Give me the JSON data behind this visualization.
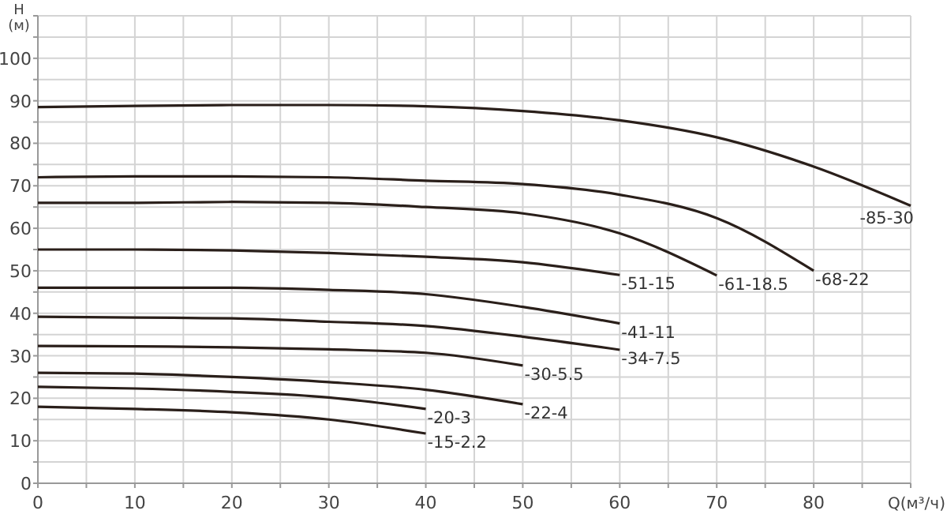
{
  "chart_data": {
    "type": "line",
    "xlabel": "Q(м³/ч)",
    "ylabel": "H (м)",
    "xlim": [
      0,
      90
    ],
    "ylim": [
      0,
      110
    ],
    "xticks": [
      0,
      {
        "value": 5,
        "label": null
      },
      10,
      {
        "value": 15,
        "label": null
      },
      20,
      {
        "value": 25,
        "label": null
      },
      30,
      {
        "value": 35,
        "label": null
      },
      40,
      {
        "value": 45,
        "label": null
      },
      50,
      {
        "value": 55,
        "label": null
      },
      60,
      {
        "value": 65,
        "label": null
      },
      70,
      {
        "value": 75,
        "label": null
      },
      80,
      {
        "value": 85,
        "label": null
      },
      {
        "value": 90,
        "label": null
      }
    ],
    "yticks": [
      0,
      {
        "value": 5,
        "label": null
      },
      10,
      {
        "value": 15,
        "label": null
      },
      20,
      {
        "value": 25,
        "label": null
      },
      30,
      {
        "value": 35,
        "label": null
      },
      40,
      {
        "value": 45,
        "label": null
      },
      50,
      {
        "value": 55,
        "label": null
      },
      60,
      {
        "value": 65,
        "label": null
      },
      70,
      {
        "value": 75,
        "label": null
      },
      80,
      {
        "value": 85,
        "label": null
      },
      90,
      {
        "value": 95,
        "label": null
      },
      100,
      {
        "value": 105,
        "label": null
      },
      {
        "value": 110,
        "label": null
      }
    ],
    "grid": true,
    "marker": "none",
    "line_style": "solid",
    "series": [
      {
        "name": "-85-30",
        "color": "#2a1f1a",
        "x": [
          0,
          10,
          20,
          30,
          40,
          50,
          60,
          70,
          80,
          90
        ],
        "values": [
          88.5,
          88.8,
          89,
          89,
          88.7,
          87.6,
          85.4,
          81.4,
          74.5,
          65.3
        ]
      },
      {
        "name": "-68-22",
        "color": "#2a1f1a",
        "x": [
          0,
          10,
          20,
          30,
          40,
          50,
          60,
          70,
          80
        ],
        "values": [
          72,
          72.2,
          72.2,
          72,
          71.2,
          70.4,
          67.9,
          62.4,
          50
        ]
      },
      {
        "name": "-61-18.5",
        "color": "#2a1f1a",
        "x": [
          0,
          10,
          20,
          30,
          40,
          50,
          60,
          70
        ],
        "values": [
          66,
          66,
          66.2,
          66,
          65,
          63.5,
          58.8,
          48.9
        ]
      },
      {
        "name": "-51-15",
        "color": "#2a1f1a",
        "x": [
          0,
          10,
          20,
          30,
          40,
          50,
          60
        ],
        "values": [
          55,
          55,
          54.8,
          54.2,
          53.3,
          52,
          49
        ]
      },
      {
        "name": "-41-11",
        "color": "#2a1f1a",
        "x": [
          0,
          10,
          20,
          30,
          40,
          50,
          60
        ],
        "values": [
          46,
          46,
          46,
          45.5,
          44.5,
          41.5,
          37.6
        ]
      },
      {
        "name": "-34-7.5",
        "color": "#2a1f1a",
        "x": [
          0,
          10,
          20,
          30,
          40,
          50,
          60
        ],
        "values": [
          39.2,
          39,
          38.8,
          38,
          37,
          34.5,
          31.4
        ]
      },
      {
        "name": "-30-5.5",
        "color": "#2a1f1a",
        "x": [
          0,
          10,
          20,
          30,
          40,
          50
        ],
        "values": [
          32.3,
          32.2,
          32,
          31.5,
          30.7,
          27.7
        ]
      },
      {
        "name": "-22-4",
        "color": "#2a1f1a",
        "x": [
          0,
          10,
          20,
          30,
          40,
          50
        ],
        "values": [
          26,
          25.8,
          25,
          23.8,
          22,
          18.6
        ]
      },
      {
        "name": "-20-3",
        "color": "#2a1f1a",
        "x": [
          0,
          10,
          20,
          30,
          40
        ],
        "values": [
          22.7,
          22.3,
          21.5,
          20.2,
          17.5
        ]
      },
      {
        "name": "-15-2.2",
        "color": "#2a1f1a",
        "x": [
          0,
          10,
          20,
          30,
          40
        ],
        "values": [
          18,
          17.5,
          16.7,
          15,
          11.7
        ]
      }
    ]
  }
}
